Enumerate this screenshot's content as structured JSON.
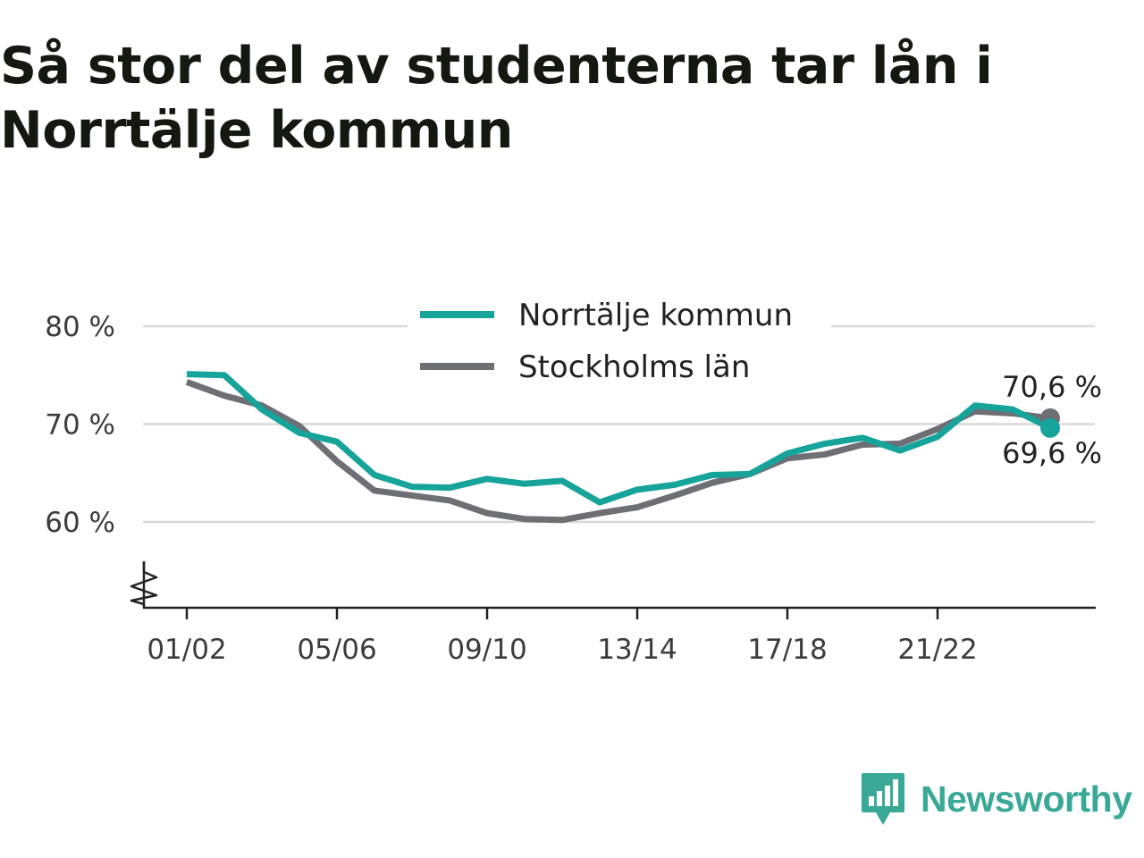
{
  "title": "Så stor del av studenterna tar lån i Norrtälje kommun",
  "brand": {
    "name": "Newsworthy",
    "logo_icon": "bar-chart-speech-bubble-icon",
    "color": "#3aa896"
  },
  "chart_data": {
    "type": "line",
    "title": "Så stor del av studenterna tar lån i Norrtälje kommun",
    "xlabel": "",
    "ylabel": "",
    "x_tick_labels": [
      "01/02",
      "05/06",
      "09/10",
      "13/14",
      "17/18",
      "21/22"
    ],
    "y_tick_labels": [
      "80 %",
      "70 %",
      "60 %"
    ],
    "y_ticks": [
      80,
      70,
      60
    ],
    "ylim": [
      51.5,
      81
    ],
    "y_axis_break": true,
    "grid": true,
    "legend_position": "top-center",
    "x": [
      "01/02",
      "02/03",
      "03/04",
      "04/05",
      "05/06",
      "06/07",
      "07/08",
      "08/09",
      "09/10",
      "10/11",
      "11/12",
      "12/13",
      "13/14",
      "14/15",
      "15/16",
      "16/17",
      "17/18",
      "18/19",
      "19/20",
      "20/21",
      "21/22",
      "22/23",
      "23/24",
      "24/25"
    ],
    "series": [
      {
        "name": "Norrtälje kommun",
        "color": "#16a39a",
        "values": [
          75.1,
          75.0,
          71.5,
          69.1,
          68.2,
          64.8,
          63.6,
          63.5,
          64.4,
          63.9,
          64.2,
          62.0,
          63.3,
          63.8,
          64.8,
          64.9,
          67.0,
          68.0,
          68.6,
          67.3,
          68.7,
          71.9,
          71.5,
          69.6
        ],
        "end_label": "69,6 %"
      },
      {
        "name": "Stockholms län",
        "color": "#6e6e75",
        "values": [
          74.3,
          72.9,
          71.9,
          69.8,
          66.2,
          63.2,
          62.7,
          62.2,
          60.9,
          60.3,
          60.2,
          60.9,
          61.5,
          62.7,
          64.0,
          64.9,
          66.5,
          66.9,
          67.9,
          68.0,
          69.5,
          71.3,
          71.1,
          70.6
        ],
        "end_label": "70,6 %"
      }
    ]
  }
}
